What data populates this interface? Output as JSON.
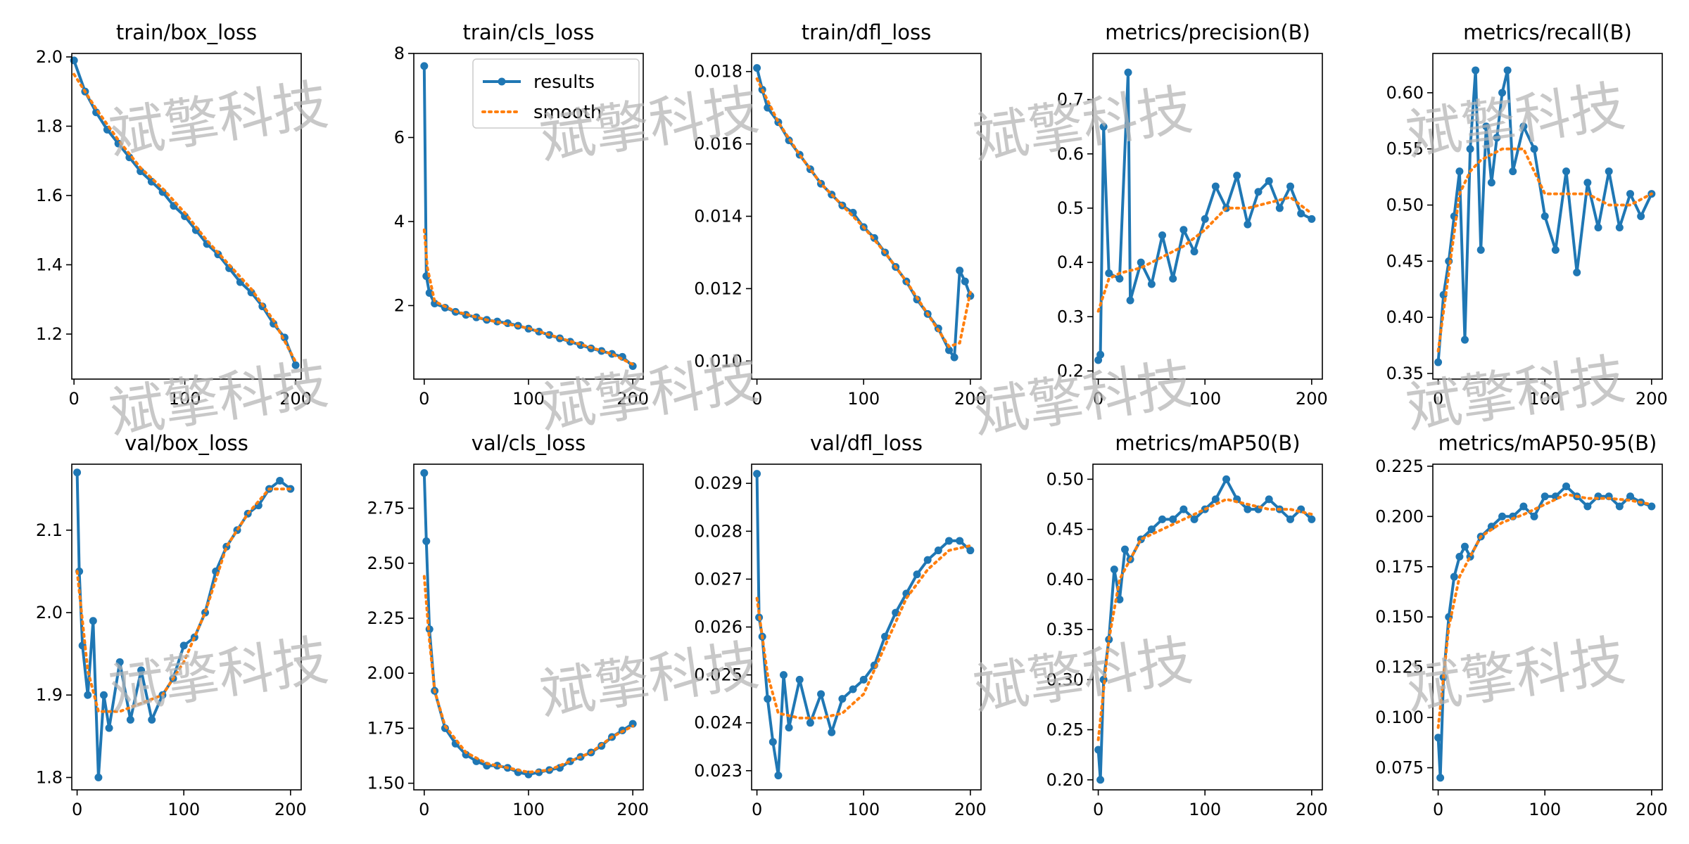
{
  "figure": {
    "watermark_text": "斌擎科技"
  },
  "legend": {
    "results_label": "results",
    "smooth_label": "smooth",
    "results_color": "#1f77b4",
    "smooth_color": "#ff7f0e"
  },
  "chart_data": [
    {
      "type": "line",
      "title": "train/box_loss",
      "xlim": [
        -2,
        205
      ],
      "ylim": [
        1.07,
        2.01
      ],
      "xticks": [
        0,
        100,
        200
      ],
      "xtick_labels": [
        "0",
        "100",
        "200"
      ],
      "yticks": [
        1.2,
        1.4,
        1.6,
        1.8,
        2.0
      ],
      "ytick_labels": [
        "1.2",
        "1.4",
        "1.6",
        "1.8",
        "2.0"
      ],
      "results": {
        "x": [
          0,
          10,
          20,
          30,
          40,
          50,
          60,
          70,
          80,
          90,
          100,
          110,
          120,
          130,
          140,
          150,
          160,
          170,
          180,
          190,
          200
        ],
        "y": [
          1.99,
          1.9,
          1.84,
          1.79,
          1.75,
          1.71,
          1.67,
          1.64,
          1.61,
          1.57,
          1.54,
          1.5,
          1.46,
          1.43,
          1.39,
          1.35,
          1.32,
          1.28,
          1.23,
          1.19,
          1.11
        ]
      },
      "smooth": {
        "x": [
          0,
          20,
          40,
          60,
          80,
          100,
          120,
          140,
          160,
          180,
          200
        ],
        "y": [
          1.95,
          1.85,
          1.76,
          1.68,
          1.62,
          1.55,
          1.47,
          1.4,
          1.33,
          1.24,
          1.12
        ]
      }
    },
    {
      "type": "line",
      "title": "train/cls_loss",
      "xlim": [
        -10,
        210
      ],
      "ylim": [
        0.25,
        8.0
      ],
      "legend": true,
      "xticks": [
        0,
        100,
        200
      ],
      "xtick_labels": [
        "0",
        "100",
        "200"
      ],
      "yticks": [
        2,
        4,
        6,
        8
      ],
      "ytick_labels": [
        "2",
        "4",
        "6",
        "8"
      ],
      "results": {
        "x": [
          0,
          2,
          5,
          10,
          20,
          30,
          40,
          50,
          60,
          70,
          80,
          90,
          100,
          110,
          120,
          130,
          140,
          150,
          160,
          170,
          180,
          190,
          200
        ],
        "y": [
          7.7,
          2.7,
          2.3,
          2.05,
          1.95,
          1.85,
          1.78,
          1.72,
          1.66,
          1.62,
          1.58,
          1.52,
          1.45,
          1.38,
          1.3,
          1.22,
          1.14,
          1.06,
          0.98,
          0.92,
          0.85,
          0.78,
          0.56
        ]
      },
      "smooth": {
        "x": [
          0,
          3,
          10,
          30,
          60,
          100,
          140,
          180,
          200
        ],
        "y": [
          3.8,
          2.9,
          2.1,
          1.86,
          1.66,
          1.46,
          1.15,
          0.85,
          0.6
        ]
      }
    },
    {
      "type": "line",
      "title": "train/dfl_loss",
      "xlim": [
        -5,
        210
      ],
      "ylim": [
        0.0095,
        0.0185
      ],
      "xticks": [
        0,
        100,
        200
      ],
      "xtick_labels": [
        "0",
        "100",
        "200"
      ],
      "yticks": [
        0.01,
        0.012,
        0.014,
        0.016,
        0.018
      ],
      "ytick_labels": [
        "0.010",
        "0.012",
        "0.014",
        "0.016",
        "0.018"
      ],
      "results": {
        "x": [
          0,
          5,
          10,
          20,
          30,
          40,
          50,
          60,
          70,
          80,
          90,
          100,
          110,
          120,
          130,
          140,
          150,
          160,
          170,
          180,
          185,
          190,
          195,
          200
        ],
        "y": [
          0.0181,
          0.0175,
          0.017,
          0.0166,
          0.0161,
          0.0157,
          0.0153,
          0.0149,
          0.0146,
          0.0143,
          0.0141,
          0.0137,
          0.0134,
          0.013,
          0.0126,
          0.0122,
          0.0117,
          0.0113,
          0.0109,
          0.0103,
          0.0101,
          0.0125,
          0.0122,
          0.0118
        ]
      },
      "smooth": {
        "x": [
          0,
          20,
          40,
          60,
          80,
          100,
          120,
          140,
          160,
          180,
          190,
          200
        ],
        "y": [
          0.0178,
          0.0166,
          0.0157,
          0.0149,
          0.0143,
          0.0137,
          0.013,
          0.0122,
          0.0113,
          0.0104,
          0.0105,
          0.0119
        ]
      }
    },
    {
      "type": "line",
      "title": "metrics/precision(B)",
      "xlim": [
        -5,
        210
      ],
      "ylim": [
        0.185,
        0.785
      ],
      "xticks": [
        0,
        100,
        200
      ],
      "xtick_labels": [
        "0",
        "100",
        "200"
      ],
      "yticks": [
        0.2,
        0.3,
        0.4,
        0.5,
        0.6,
        0.7
      ],
      "ytick_labels": [
        "0.2",
        "0.3",
        "0.4",
        "0.5",
        "0.6",
        "0.7"
      ],
      "results": {
        "x": [
          0,
          2,
          5,
          10,
          20,
          28,
          30,
          40,
          50,
          60,
          70,
          80,
          90,
          100,
          110,
          120,
          130,
          140,
          150,
          160,
          170,
          180,
          190,
          200
        ],
        "y": [
          0.22,
          0.23,
          0.65,
          0.38,
          0.37,
          0.75,
          0.33,
          0.4,
          0.36,
          0.45,
          0.37,
          0.46,
          0.42,
          0.48,
          0.54,
          0.5,
          0.56,
          0.47,
          0.53,
          0.55,
          0.5,
          0.54,
          0.49,
          0.48
        ]
      },
      "smooth": {
        "x": [
          0,
          10,
          20,
          40,
          60,
          80,
          100,
          120,
          140,
          160,
          180,
          200
        ],
        "y": [
          0.31,
          0.37,
          0.38,
          0.39,
          0.41,
          0.43,
          0.46,
          0.5,
          0.5,
          0.51,
          0.52,
          0.49
        ]
      }
    },
    {
      "type": "line",
      "title": "metrics/recall(B)",
      "xlim": [
        -5,
        210
      ],
      "ylim": [
        0.345,
        0.635
      ],
      "xticks": [
        0,
        100,
        200
      ],
      "xtick_labels": [
        "0",
        "100",
        "200"
      ],
      "yticks": [
        0.35,
        0.4,
        0.45,
        0.5,
        0.55,
        0.6
      ],
      "ytick_labels": [
        "0.35",
        "0.40",
        "0.45",
        "0.50",
        "0.55",
        "0.60"
      ],
      "results": {
        "x": [
          0,
          5,
          10,
          15,
          20,
          25,
          30,
          35,
          40,
          45,
          50,
          55,
          60,
          65,
          70,
          80,
          90,
          100,
          110,
          120,
          130,
          140,
          150,
          160,
          170,
          180,
          190,
          200
        ],
        "y": [
          0.36,
          0.42,
          0.45,
          0.49,
          0.53,
          0.38,
          0.55,
          0.62,
          0.46,
          0.57,
          0.52,
          0.56,
          0.6,
          0.62,
          0.53,
          0.57,
          0.55,
          0.49,
          0.46,
          0.53,
          0.44,
          0.52,
          0.48,
          0.53,
          0.48,
          0.51,
          0.49,
          0.51
        ]
      },
      "smooth": {
        "x": [
          0,
          10,
          20,
          30,
          40,
          60,
          80,
          100,
          120,
          140,
          160,
          180,
          200
        ],
        "y": [
          0.37,
          0.44,
          0.51,
          0.53,
          0.54,
          0.55,
          0.55,
          0.51,
          0.51,
          0.51,
          0.5,
          0.5,
          0.51
        ]
      }
    },
    {
      "type": "line",
      "title": "val/box_loss",
      "xlim": [
        -5,
        210
      ],
      "ylim": [
        1.785,
        2.18
      ],
      "xticks": [
        0,
        100,
        200
      ],
      "xtick_labels": [
        "0",
        "100",
        "200"
      ],
      "yticks": [
        1.8,
        1.9,
        2.0,
        2.1
      ],
      "ytick_labels": [
        "1.8",
        "1.9",
        "2.0",
        "2.1"
      ],
      "results": {
        "x": [
          0,
          2,
          5,
          10,
          15,
          20,
          25,
          30,
          40,
          50,
          60,
          70,
          80,
          90,
          100,
          110,
          120,
          130,
          140,
          150,
          160,
          170,
          180,
          190,
          200
        ],
        "y": [
          2.17,
          2.05,
          1.96,
          1.9,
          1.99,
          1.8,
          1.9,
          1.86,
          1.94,
          1.87,
          1.93,
          1.87,
          1.9,
          1.92,
          1.96,
          1.97,
          2.0,
          2.05,
          2.08,
          2.1,
          2.12,
          2.13,
          2.15,
          2.16,
          2.15
        ]
      },
      "smooth": {
        "x": [
          0,
          10,
          20,
          40,
          60,
          80,
          100,
          120,
          140,
          160,
          180,
          200
        ],
        "y": [
          2.05,
          1.93,
          1.88,
          1.88,
          1.89,
          1.9,
          1.94,
          2.0,
          2.08,
          2.12,
          2.15,
          2.15
        ]
      }
    },
    {
      "type": "line",
      "title": "val/cls_loss",
      "xlim": [
        -10,
        210
      ],
      "ylim": [
        1.47,
        2.95
      ],
      "xticks": [
        0,
        100,
        200
      ],
      "xtick_labels": [
        "0",
        "100",
        "200"
      ],
      "yticks": [
        1.5,
        1.75,
        2.0,
        2.25,
        2.5,
        2.75
      ],
      "ytick_labels": [
        "1.50",
        "1.75",
        "2.00",
        "2.25",
        "2.50",
        "2.75"
      ],
      "results": {
        "x": [
          0,
          2,
          5,
          10,
          20,
          30,
          40,
          50,
          60,
          70,
          80,
          90,
          100,
          110,
          120,
          130,
          140,
          150,
          160,
          170,
          180,
          190,
          200
        ],
        "y": [
          2.91,
          2.6,
          2.2,
          1.92,
          1.75,
          1.68,
          1.63,
          1.6,
          1.58,
          1.58,
          1.57,
          1.55,
          1.54,
          1.55,
          1.56,
          1.57,
          1.6,
          1.62,
          1.64,
          1.67,
          1.71,
          1.74,
          1.77
        ]
      },
      "smooth": {
        "x": [
          0,
          5,
          10,
          20,
          40,
          60,
          80,
          100,
          120,
          140,
          160,
          180,
          200
        ],
        "y": [
          2.44,
          2.15,
          1.92,
          1.76,
          1.64,
          1.59,
          1.57,
          1.55,
          1.56,
          1.6,
          1.64,
          1.71,
          1.76
        ]
      }
    },
    {
      "type": "line",
      "title": "val/dfl_loss",
      "xlim": [
        -5,
        210
      ],
      "ylim": [
        0.0226,
        0.0294
      ],
      "xticks": [
        0,
        100,
        200
      ],
      "xtick_labels": [
        "0",
        "100",
        "200"
      ],
      "yticks": [
        0.023,
        0.024,
        0.025,
        0.026,
        0.027,
        0.028,
        0.029
      ],
      "ytick_labels": [
        "0.023",
        "0.024",
        "0.025",
        "0.026",
        "0.027",
        "0.028",
        "0.029"
      ],
      "results": {
        "x": [
          0,
          2,
          5,
          10,
          15,
          20,
          25,
          30,
          40,
          50,
          60,
          70,
          80,
          90,
          100,
          110,
          120,
          130,
          140,
          150,
          160,
          170,
          180,
          190,
          200
        ],
        "y": [
          0.0292,
          0.0262,
          0.0258,
          0.0245,
          0.0236,
          0.0229,
          0.025,
          0.0239,
          0.0249,
          0.024,
          0.0246,
          0.0238,
          0.0245,
          0.0247,
          0.0249,
          0.0252,
          0.0258,
          0.0263,
          0.0267,
          0.0271,
          0.0274,
          0.0276,
          0.0278,
          0.0278,
          0.0276
        ]
      },
      "smooth": {
        "x": [
          0,
          10,
          20,
          40,
          60,
          80,
          100,
          120,
          140,
          160,
          180,
          200
        ],
        "y": [
          0.0266,
          0.025,
          0.0242,
          0.0241,
          0.0241,
          0.0242,
          0.0246,
          0.0256,
          0.0266,
          0.0272,
          0.0276,
          0.0277
        ]
      }
    },
    {
      "type": "line",
      "title": "metrics/mAP50(B)",
      "xlim": [
        -5,
        210
      ],
      "ylim": [
        0.19,
        0.515
      ],
      "xticks": [
        0,
        100,
        200
      ],
      "xtick_labels": [
        "0",
        "100",
        "200"
      ],
      "yticks": [
        0.2,
        0.25,
        0.3,
        0.35,
        0.4,
        0.45,
        0.5
      ],
      "ytick_labels": [
        "0.20",
        "0.25",
        "0.30",
        "0.35",
        "0.40",
        "0.45",
        "0.50"
      ],
      "results": {
        "x": [
          0,
          2,
          5,
          10,
          15,
          20,
          25,
          30,
          40,
          50,
          60,
          70,
          80,
          90,
          100,
          110,
          120,
          130,
          140,
          150,
          160,
          170,
          180,
          190,
          200
        ],
        "y": [
          0.23,
          0.2,
          0.3,
          0.34,
          0.41,
          0.38,
          0.43,
          0.42,
          0.44,
          0.45,
          0.46,
          0.46,
          0.47,
          0.46,
          0.47,
          0.48,
          0.5,
          0.48,
          0.47,
          0.47,
          0.48,
          0.47,
          0.46,
          0.47,
          0.46
        ]
      },
      "smooth": {
        "x": [
          0,
          5,
          10,
          20,
          40,
          60,
          80,
          100,
          120,
          140,
          160,
          180,
          200
        ],
        "y": [
          0.24,
          0.29,
          0.34,
          0.4,
          0.44,
          0.45,
          0.46,
          0.47,
          0.48,
          0.475,
          0.47,
          0.47,
          0.465
        ]
      }
    },
    {
      "type": "line",
      "title": "metrics/mAP50-95(B)",
      "xlim": [
        -5,
        210
      ],
      "ylim": [
        0.064,
        0.226
      ],
      "xticks": [
        0,
        100,
        200
      ],
      "xtick_labels": [
        "0",
        "100",
        "200"
      ],
      "yticks": [
        0.075,
        0.1,
        0.125,
        0.15,
        0.175,
        0.2,
        0.225
      ],
      "ytick_labels": [
        "0.075",
        "0.100",
        "0.125",
        "0.150",
        "0.175",
        "0.200",
        "0.225"
      ],
      "results": {
        "x": [
          0,
          2,
          5,
          10,
          15,
          20,
          25,
          30,
          40,
          50,
          60,
          70,
          80,
          90,
          100,
          110,
          120,
          130,
          140,
          150,
          160,
          170,
          180,
          190,
          200
        ],
        "y": [
          0.09,
          0.07,
          0.12,
          0.15,
          0.17,
          0.18,
          0.185,
          0.18,
          0.19,
          0.195,
          0.2,
          0.2,
          0.205,
          0.2,
          0.21,
          0.21,
          0.215,
          0.21,
          0.205,
          0.21,
          0.21,
          0.205,
          0.21,
          0.207,
          0.205
        ]
      },
      "smooth": {
        "x": [
          0,
          5,
          10,
          20,
          40,
          60,
          80,
          100,
          120,
          140,
          160,
          180,
          200
        ],
        "y": [
          0.095,
          0.12,
          0.145,
          0.17,
          0.19,
          0.197,
          0.201,
          0.206,
          0.211,
          0.209,
          0.209,
          0.208,
          0.206
        ]
      }
    }
  ]
}
